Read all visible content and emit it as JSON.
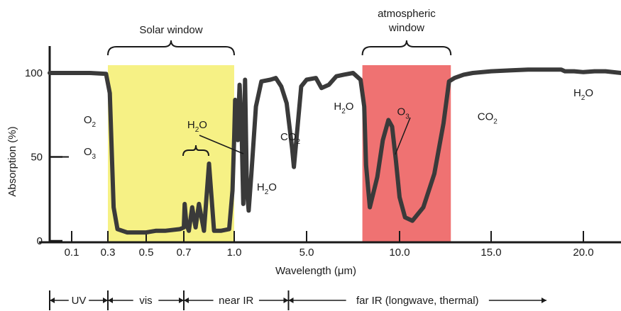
{
  "chart_data": {
    "type": "line",
    "xlabel": "Wavelength (μm)",
    "ylabel": "Absorption (%)",
    "x_ticks": [
      "0.1",
      "0.3",
      "0.5",
      "0.7",
      "1.0",
      "5.0",
      "10.0",
      "15.0",
      "20.0"
    ],
    "y_ticks": [
      "0",
      "50",
      "100"
    ],
    "ylim": [
      0,
      100
    ],
    "x_scale": "piecewise (0.1–1.0 expanded, 1.0–20.0 compressed)",
    "grid": false,
    "windows": [
      {
        "label": "Solar window",
        "x_range": [
          0.3,
          1.0
        ],
        "color": "#f6f185"
      },
      {
        "label": "atmospheric window",
        "label_lines": [
          "atmospheric",
          "window"
        ],
        "x_range": [
          8.0,
          12.8
        ],
        "color": "#ef7272"
      }
    ],
    "series": [
      {
        "color": "#3a3a3a",
        "points": [
          [
            0.02,
            100
          ],
          [
            0.1,
            100
          ],
          [
            0.2,
            100
          ],
          [
            0.29,
            99.5
          ],
          [
            0.31,
            88
          ],
          [
            0.33,
            20
          ],
          [
            0.35,
            7
          ],
          [
            0.4,
            5
          ],
          [
            0.5,
            5
          ],
          [
            0.55,
            6
          ],
          [
            0.6,
            6
          ],
          [
            0.68,
            7
          ],
          [
            0.7,
            8
          ],
          [
            0.705,
            22
          ],
          [
            0.715,
            10
          ],
          [
            0.73,
            6
          ],
          [
            0.75,
            20
          ],
          [
            0.77,
            8
          ],
          [
            0.79,
            22
          ],
          [
            0.82,
            6
          ],
          [
            0.85,
            46
          ],
          [
            0.88,
            6
          ],
          [
            0.92,
            6
          ],
          [
            0.97,
            7
          ],
          [
            0.99,
            30
          ],
          [
            1.0,
            62
          ],
          [
            1.05,
            84
          ],
          [
            1.1,
            65
          ],
          [
            1.15,
            70
          ],
          [
            1.2,
            60
          ],
          [
            1.25,
            80
          ],
          [
            1.3,
            93
          ],
          [
            1.4,
            70
          ],
          [
            1.5,
            22
          ],
          [
            1.6,
            96
          ],
          [
            1.7,
            30
          ],
          [
            1.8,
            18
          ],
          [
            1.95,
            40
          ],
          [
            2.2,
            80
          ],
          [
            2.5,
            95
          ],
          [
            3.0,
            96
          ],
          [
            3.3,
            97
          ],
          [
            3.6,
            92
          ],
          [
            3.9,
            82
          ],
          [
            4.2,
            55
          ],
          [
            4.3,
            44
          ],
          [
            4.45,
            62
          ],
          [
            4.7,
            92
          ],
          [
            5.0,
            96
          ],
          [
            5.5,
            97
          ],
          [
            5.8,
            91
          ],
          [
            6.2,
            93
          ],
          [
            6.6,
            98
          ],
          [
            7.0,
            99
          ],
          [
            7.5,
            100
          ],
          [
            7.9,
            96
          ],
          [
            8.1,
            80
          ],
          [
            8.2,
            45
          ],
          [
            8.4,
            20
          ],
          [
            8.8,
            38
          ],
          [
            9.1,
            60
          ],
          [
            9.4,
            72
          ],
          [
            9.6,
            68
          ],
          [
            9.8,
            48
          ],
          [
            10.0,
            26
          ],
          [
            10.3,
            14
          ],
          [
            10.7,
            12
          ],
          [
            11.3,
            20
          ],
          [
            11.9,
            40
          ],
          [
            12.4,
            70
          ],
          [
            12.7,
            95
          ],
          [
            13.0,
            97
          ],
          [
            13.5,
            99
          ],
          [
            14.0,
            100
          ],
          [
            15.0,
            101
          ],
          [
            16.0,
            101.5
          ],
          [
            17.0,
            102
          ],
          [
            18.0,
            102
          ],
          [
            18.8,
            102
          ],
          [
            19.0,
            101
          ],
          [
            19.5,
            101
          ],
          [
            20.0,
            100.5
          ],
          [
            20.5,
            101
          ],
          [
            21.0,
            101
          ],
          [
            21.7,
            100
          ]
        ]
      }
    ],
    "annotations": [
      {
        "base": "O",
        "sub": "2",
        "x": 0.2,
        "y": 70
      },
      {
        "base": "O",
        "sub": "3",
        "x": 0.2,
        "y": 51
      },
      {
        "base": "H",
        "sub": "2",
        "tail": "O",
        "x": 0.78,
        "y": 67
      },
      {
        "base": "CO",
        "sub": "2",
        "x": 4.1,
        "y": 60
      },
      {
        "base": "H",
        "sub": "2",
        "tail": "O",
        "x": 2.8,
        "y": 30
      },
      {
        "base": "H",
        "sub": "2",
        "tail": "O",
        "x": 7.0,
        "y": 78
      },
      {
        "base": "O",
        "sub": "3",
        "x": 10.2,
        "y": 75
      },
      {
        "base": "CO",
        "sub": "2",
        "x": 14.8,
        "y": 72
      },
      {
        "base": "H",
        "sub": "2",
        "tail": "O",
        "x": 20.0,
        "y": 86
      }
    ],
    "spectral_bands": [
      {
        "label": "UV",
        "range": [
          0.02,
          0.3
        ]
      },
      {
        "label": "vis",
        "range": [
          0.3,
          0.7
        ]
      },
      {
        "label": "near IR",
        "range": [
          0.7,
          4.0
        ]
      },
      {
        "label": "far IR (longwave, thermal)",
        "range": [
          4.0,
          15.0
        ]
      }
    ]
  }
}
